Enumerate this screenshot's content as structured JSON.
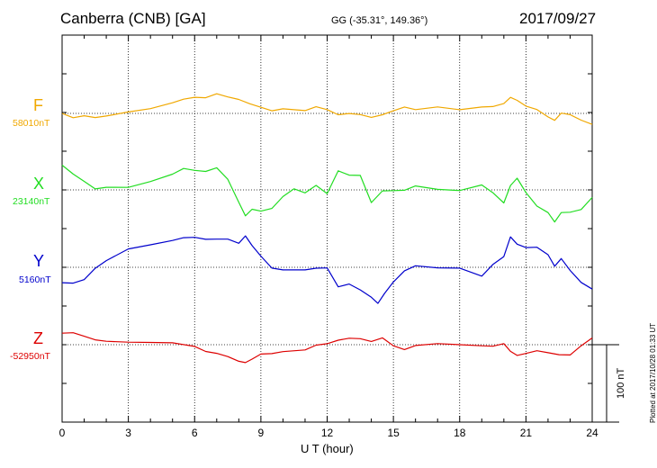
{
  "header": {
    "title": "Canberra (CNB)  [GA]",
    "coordinates": "GG (-35.31°, 149.36°)",
    "date": "2017/09/27"
  },
  "plotted_note": "Plotted at 2017/10/28 01:33 UT",
  "chart_data": {
    "type": "line",
    "xlabel": "U T (hour)",
    "xlim": [
      0,
      24
    ],
    "x_ticks": [
      "0",
      "3",
      "6",
      "9",
      "12",
      "15",
      "18",
      "21",
      "24"
    ],
    "grid": true,
    "scale_bar": "100 nT",
    "series": [
      {
        "name": "F",
        "baseline": "58010nT",
        "color": "#f0a800",
        "x": [
          0,
          0.5,
          1,
          1.5,
          2,
          3,
          4,
          5,
          5.5,
          6,
          6.5,
          7,
          7.5,
          8,
          8.5,
          9,
          9.5,
          10,
          11,
          11.5,
          12,
          12.5,
          13,
          13.5,
          14,
          14.5,
          15,
          15.5,
          16,
          17,
          18,
          19,
          19.5,
          20,
          20.3,
          20.6,
          21,
          21.5,
          22,
          22.3,
          22.6,
          23,
          23.5,
          24
        ],
        "y": [
          0,
          -5,
          -2,
          -4,
          -2,
          3,
          7,
          14,
          18,
          20,
          19,
          24,
          20,
          17,
          12,
          8,
          4,
          7,
          5,
          10,
          6,
          -1,
          0,
          -2,
          -6,
          -3,
          2,
          7,
          4,
          8,
          5,
          9,
          10,
          14,
          22,
          18,
          10,
          5,
          -5,
          -10,
          -1,
          -3,
          -10,
          -15
        ]
      },
      {
        "name": "X",
        "baseline": "23140nT",
        "color": "#22dd22",
        "x": [
          0,
          0.5,
          1,
          1.5,
          2,
          3,
          4,
          5,
          5.5,
          6,
          6.5,
          7,
          7.5,
          8,
          8.3,
          8.6,
          9,
          9.5,
          10,
          10.5,
          11,
          11.5,
          12,
          12.5,
          13,
          13.5,
          14,
          14.5,
          15,
          15.5,
          16,
          17,
          18,
          19,
          19.5,
          20,
          20.3,
          20.6,
          21,
          21.5,
          22,
          22.3,
          22.6,
          23,
          23.5,
          24
        ],
        "y": [
          32,
          20,
          10,
          0,
          2,
          2,
          10,
          20,
          28,
          26,
          25,
          30,
          15,
          -15,
          -33,
          -25,
          -28,
          -25,
          -10,
          0,
          -5,
          5,
          -5,
          25,
          20,
          20,
          -15,
          0,
          0,
          0,
          5,
          0,
          -2,
          5,
          -5,
          -18,
          5,
          15,
          -3,
          -20,
          -28,
          -40,
          -28,
          -28,
          -25,
          -10
        ]
      },
      {
        "name": "Y",
        "baseline": "5160nT",
        "color": "#0000cc",
        "x": [
          0,
          0.5,
          1,
          1.5,
          2,
          3,
          4,
          5,
          5.5,
          6,
          6.5,
          7,
          7.5,
          8,
          8.3,
          8.6,
          9,
          9.5,
          10,
          11,
          11.5,
          12,
          12.5,
          13,
          13.5,
          14,
          14.3,
          14.6,
          15,
          15.5,
          16,
          17,
          18,
          19,
          19.5,
          20,
          20.3,
          20.6,
          21,
          21.5,
          22,
          22.3,
          22.6,
          23,
          23.5,
          24
        ],
        "y": [
          -20,
          -20,
          -15,
          0,
          10,
          25,
          30,
          35,
          38,
          38,
          35,
          35,
          35,
          30,
          40,
          28,
          15,
          0,
          -2,
          -2,
          0,
          0,
          -25,
          -22,
          -30,
          -40,
          -48,
          -35,
          -20,
          -5,
          2,
          0,
          0,
          -10,
          5,
          15,
          40,
          30,
          25,
          25,
          15,
          0,
          10,
          -5,
          -20,
          -28
        ]
      },
      {
        "name": "Z",
        "baseline": "-52950nT",
        "color": "#dd0000",
        "x": [
          0,
          0.5,
          1,
          1.5,
          2,
          3,
          4,
          5,
          6,
          6.5,
          7,
          7.5,
          8,
          8.3,
          8.6,
          9,
          9.5,
          10,
          11,
          11.5,
          12,
          12.5,
          13,
          13.5,
          14,
          14.5,
          15,
          15.5,
          16,
          17,
          18,
          19,
          19.5,
          20,
          20.3,
          20.6,
          21,
          21.5,
          22,
          22.5,
          23,
          23.5,
          24
        ],
        "y": [
          15,
          15,
          10,
          5,
          3,
          2,
          2,
          2,
          -2,
          -8,
          -10,
          -14,
          -20,
          -22,
          -18,
          -12,
          -12,
          -10,
          -8,
          -2,
          0,
          5,
          8,
          8,
          5,
          10,
          0,
          -5,
          0,
          2,
          0,
          -2,
          -3,
          0,
          -10,
          -15,
          -12,
          -8,
          -10,
          -12,
          -12,
          0,
          10
        ]
      }
    ]
  }
}
